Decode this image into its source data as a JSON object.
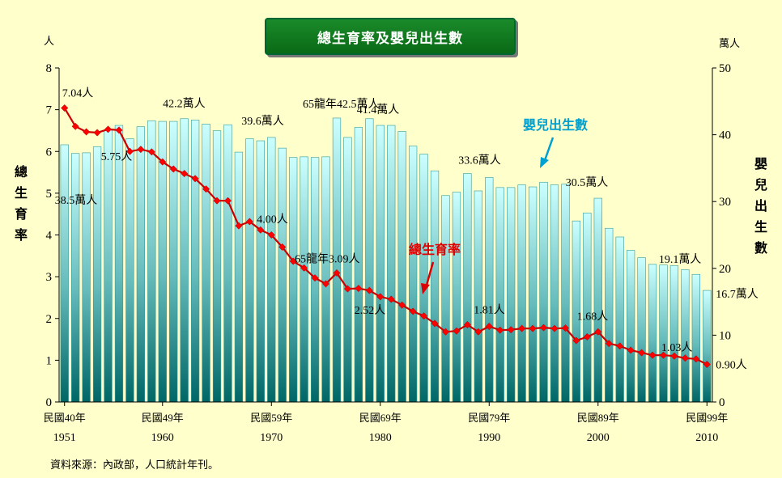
{
  "title": "總生育率及嬰兒出生數",
  "source": "資料來源：內政部，人口統計年刊。",
  "colors": {
    "background": "#ffffcc",
    "bar_top": "#ccffff",
    "bar_bottom": "#006666",
    "bar_edge": "#339999",
    "line": "#cc0000",
    "marker": "#ff0000",
    "births_label": "#00a0d0",
    "tfr_label": "#dd0000"
  },
  "chart_data": {
    "type": "bar+line",
    "title": "總生育率及嬰兒出生數",
    "left_axis": {
      "unit": "人",
      "label": "總生育率",
      "ylim": [
        0,
        8
      ],
      "ticks": [
        "0",
        "1",
        "2",
        "3",
        "4",
        "5",
        "6",
        "7",
        "8"
      ]
    },
    "right_axis": {
      "unit": "萬人",
      "label": "嬰兒出生數",
      "ylim": [
        0,
        50
      ],
      "ticks": [
        "0",
        "10",
        "20",
        "30",
        "40",
        "50"
      ]
    },
    "x_ticks": [
      {
        "roc": "民國40年",
        "year": "1951"
      },
      {
        "roc": "民國49年",
        "year": "1960"
      },
      {
        "roc": "民國59年",
        "year": "1970"
      },
      {
        "roc": "民國69年",
        "year": "1980"
      },
      {
        "roc": "民國79年",
        "year": "1990"
      },
      {
        "roc": "民國89年",
        "year": "2000"
      },
      {
        "roc": "民國99年",
        "year": "2010"
      }
    ],
    "years": [
      1951,
      1952,
      1953,
      1954,
      1955,
      1956,
      1957,
      1958,
      1959,
      1960,
      1961,
      1962,
      1963,
      1964,
      1965,
      1966,
      1967,
      1968,
      1969,
      1970,
      1971,
      1972,
      1973,
      1974,
      1975,
      1976,
      1977,
      1978,
      1979,
      1980,
      1981,
      1982,
      1983,
      1984,
      1985,
      1986,
      1987,
      1988,
      1989,
      1990,
      1991,
      1992,
      1993,
      1994,
      1995,
      1996,
      1997,
      1998,
      1999,
      2000,
      2001,
      2002,
      2003,
      2004,
      2005,
      2006,
      2007,
      2008,
      2009,
      2010
    ],
    "series": [
      {
        "name": "嬰兒出生數",
        "kind": "bar",
        "axis": "right",
        "values": [
          38.5,
          37.2,
          37.3,
          38.2,
          40.7,
          41.4,
          39.4,
          41.2,
          42.1,
          42.0,
          42.0,
          42.4,
          42.2,
          41.6,
          40.6,
          41.5,
          37.4,
          39.4,
          39.1,
          39.6,
          38.0,
          36.6,
          36.7,
          36.6,
          36.7,
          42.5,
          39.6,
          41.1,
          42.4,
          41.4,
          41.4,
          40.5,
          38.3,
          37.1,
          34.6,
          30.9,
          31.4,
          34.2,
          31.6,
          33.6,
          32.1,
          32.1,
          32.5,
          32.2,
          32.9,
          32.5,
          32.6,
          27.1,
          28.3,
          30.5,
          26.0,
          24.7,
          22.7,
          21.6,
          20.6,
          20.5,
          20.4,
          19.8,
          19.1,
          16.7
        ]
      },
      {
        "name": "總生育率",
        "kind": "line",
        "axis": "left",
        "values": [
          7.04,
          6.6,
          6.47,
          6.45,
          6.53,
          6.51,
          6.0,
          6.05,
          5.99,
          5.75,
          5.58,
          5.47,
          5.35,
          5.1,
          4.82,
          4.82,
          4.22,
          4.32,
          4.12,
          4.0,
          3.71,
          3.37,
          3.21,
          2.97,
          2.83,
          3.09,
          2.71,
          2.72,
          2.67,
          2.52,
          2.46,
          2.32,
          2.17,
          2.06,
          1.88,
          1.68,
          1.7,
          1.85,
          1.68,
          1.81,
          1.72,
          1.73,
          1.76,
          1.76,
          1.78,
          1.76,
          1.77,
          1.47,
          1.56,
          1.68,
          1.4,
          1.34,
          1.24,
          1.18,
          1.12,
          1.12,
          1.1,
          1.05,
          1.03,
          0.9
        ]
      }
    ],
    "annotations": [
      {
        "text": "7.04人",
        "year": 1951,
        "series": "總生育率"
      },
      {
        "text": "38.5萬人",
        "year": 1951,
        "series": "嬰兒出生數"
      },
      {
        "text": "42.2萬人",
        "year": 1963,
        "series": "嬰兒出生數"
      },
      {
        "text": "5.75人",
        "year": 1960,
        "series": "總生育率"
      },
      {
        "text": "39.6萬人",
        "year": 1970,
        "series": "嬰兒出生數"
      },
      {
        "text": "4.00人",
        "year": 1970,
        "series": "總生育率"
      },
      {
        "text": "65龍年42.5萬人",
        "year": 1976,
        "series": "嬰兒出生數"
      },
      {
        "text": "41.4萬人",
        "year": 1980,
        "series": "嬰兒出生數"
      },
      {
        "text": "65龍年3.09人",
        "year": 1976,
        "series": "總生育率"
      },
      {
        "text": "2.52人",
        "year": 1980,
        "series": "總生育率"
      },
      {
        "text": "33.6萬人",
        "year": 1990,
        "series": "嬰兒出生數"
      },
      {
        "text": "1.81人",
        "year": 1990,
        "series": "總生育率"
      },
      {
        "text": "30.5萬人",
        "year": 2000,
        "series": "嬰兒出生數"
      },
      {
        "text": "1.68人",
        "year": 2000,
        "series": "總生育率"
      },
      {
        "text": "19.1萬人",
        "year": 2009,
        "series": "嬰兒出生數"
      },
      {
        "text": "16.7萬人",
        "year": 2010,
        "series": "嬰兒出生數"
      },
      {
        "text": "1.03人",
        "year": 2009,
        "series": "總生育率"
      },
      {
        "text": "0.90人",
        "year": 2010,
        "series": "總生育率"
      }
    ],
    "legend_callouts": [
      {
        "text": "嬰兒出生數",
        "series": "嬰兒出生數"
      },
      {
        "text": "總生育率",
        "series": "總生育率"
      }
    ]
  }
}
